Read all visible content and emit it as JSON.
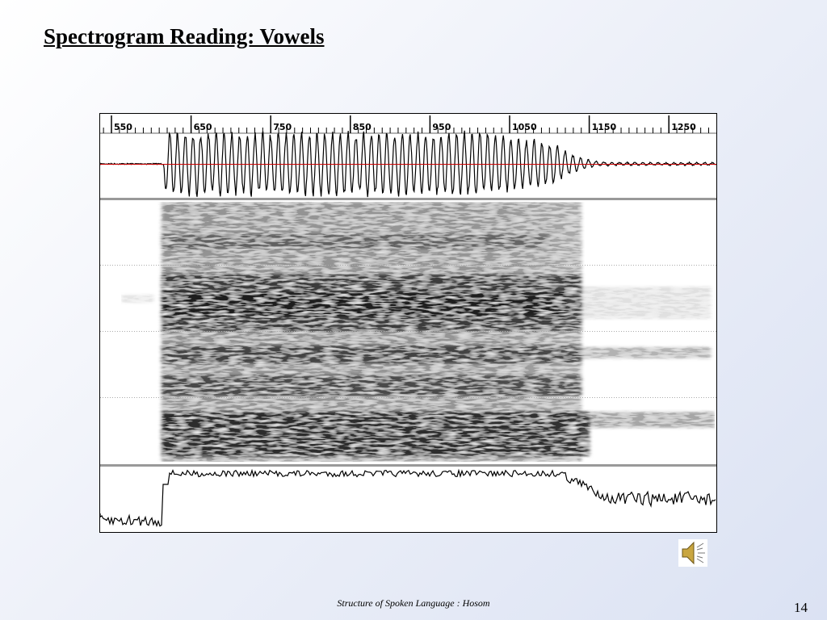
{
  "header": {
    "title": "Spectrogram Reading: Vowels"
  },
  "figure": {
    "time_axis_labels": [
      550,
      650,
      750,
      850,
      950,
      1050,
      1150,
      1250
    ]
  },
  "footer": {
    "text": "Structure of Spoken Language : Hosom",
    "page_number": "14"
  }
}
